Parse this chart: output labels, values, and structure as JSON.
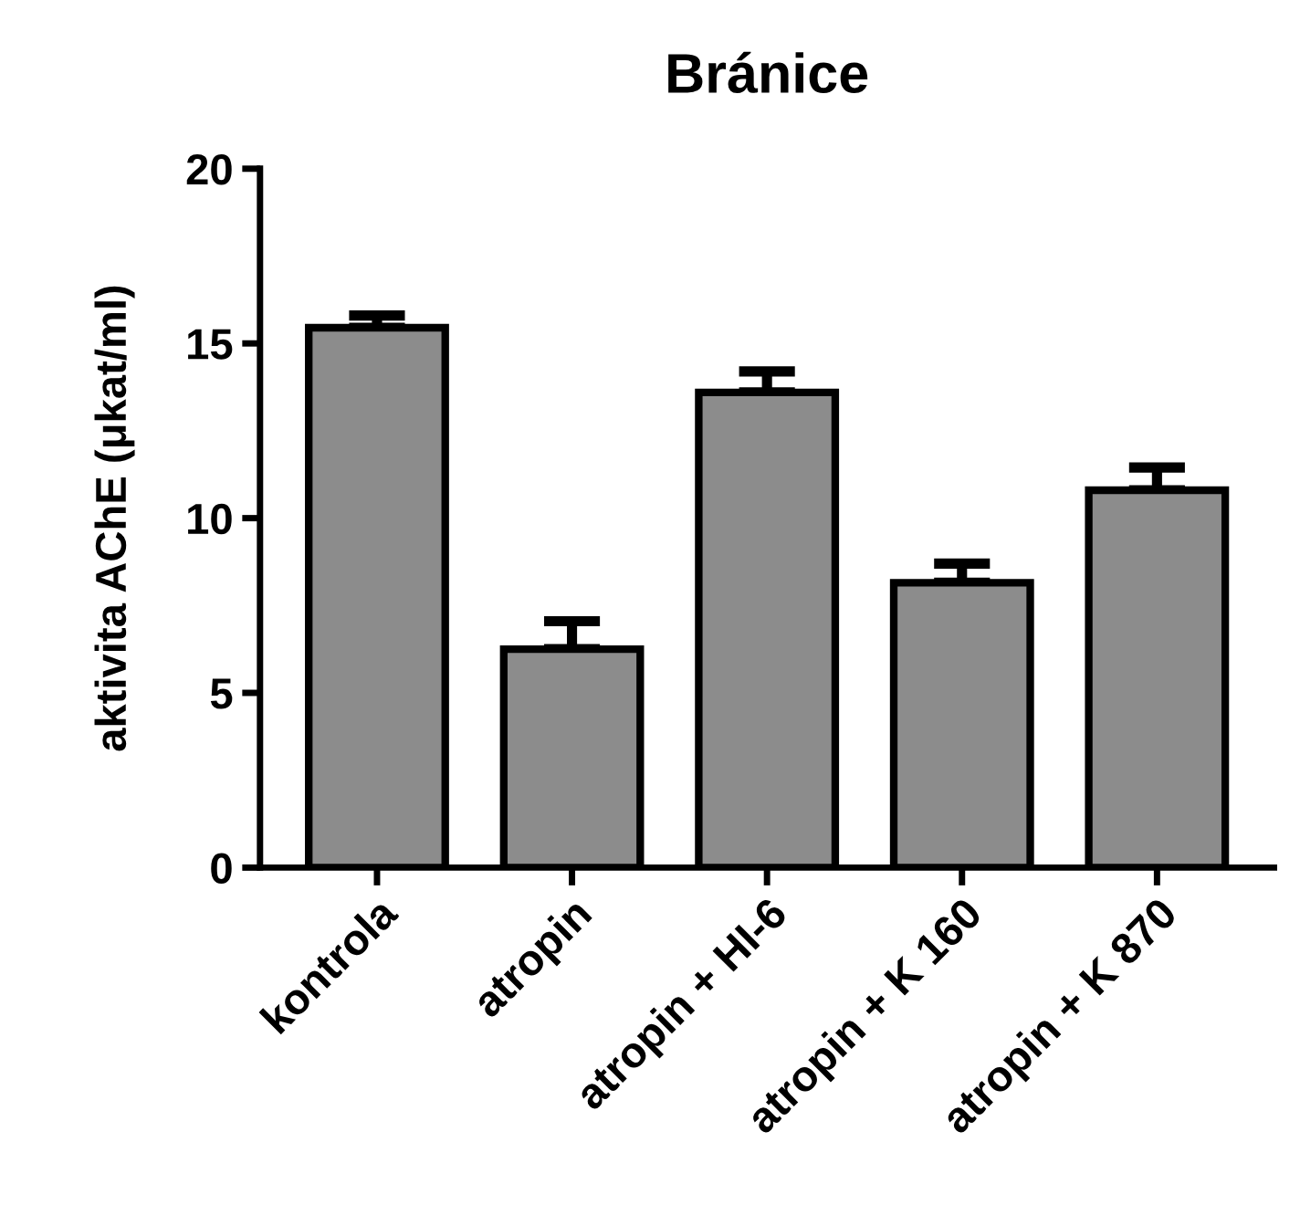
{
  "chart_data": {
    "type": "bar",
    "title": "Bránice",
    "ylabel": "aktivita AChE (μkat/ml)",
    "categories": [
      "kontrola",
      "atropin",
      "atropin + HI-6",
      "atropin + K 160",
      "atropin + K 870"
    ],
    "values": [
      15.45,
      6.25,
      13.6,
      8.15,
      10.8
    ],
    "errors": [
      [
        15.45,
        15.8
      ],
      [
        6.25,
        7.05
      ],
      [
        13.6,
        14.2
      ],
      [
        8.15,
        8.7
      ],
      [
        10.8,
        11.45
      ]
    ],
    "color": "#8c8c8c",
    "ylim": [
      0,
      20
    ],
    "yticks": [
      0,
      5,
      10,
      15,
      20
    ],
    "grid": false,
    "legend": false
  }
}
